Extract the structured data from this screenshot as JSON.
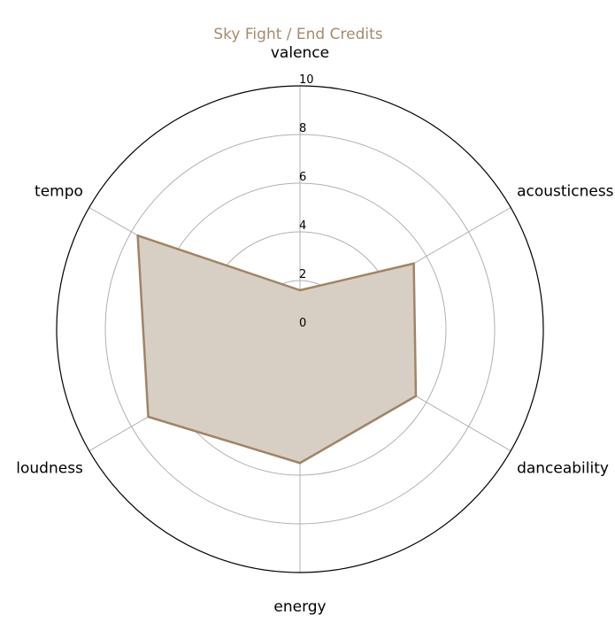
{
  "chart_data": {
    "type": "radar",
    "title": "Sky Fight / End Credits",
    "axes": [
      "valence",
      "acousticness",
      "danceability",
      "energy",
      "loudness",
      "tempo"
    ],
    "series": [
      {
        "values": [
          1.6,
          5.4,
          5.5,
          5.5,
          7.2,
          7.7
        ]
      }
    ],
    "rlim": [
      0,
      10
    ],
    "r_ticks": [
      "0",
      "2",
      "4",
      "6",
      "8",
      "10"
    ],
    "grid": true,
    "colors": {
      "title": "#a68a6d",
      "series_line": "#a08466",
      "series_fill": "#d8cfc4",
      "grid": "#b0b0b0",
      "outer_circle": "#000000"
    }
  }
}
